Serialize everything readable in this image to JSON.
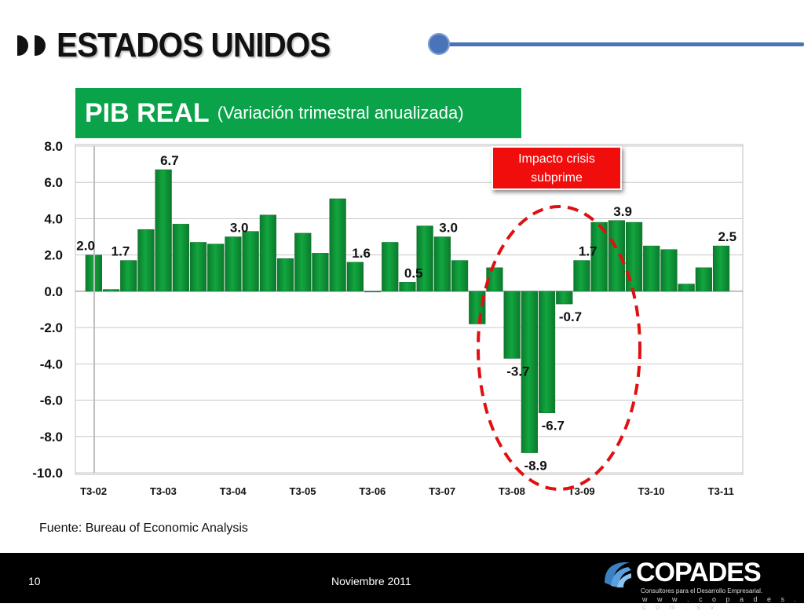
{
  "slide": {
    "title": "ESTADOS UNIDOS",
    "chart_heading": "PIB REAL",
    "chart_subheading": "(Variación trimestral anualizada)",
    "source": "Fuente: Bureau of Economic Analysis",
    "page_number": "10",
    "date": "Noviembre 2011",
    "callout_line1": "Impacto crisis",
    "callout_line2": "subprime"
  },
  "logo": {
    "name": "COPADES",
    "tagline": "Consultores para el Desarrollo Empresarial.",
    "url": "w w w . c o p a d e s . c o m . s v"
  },
  "colors": {
    "bar": "#12a63f",
    "heading_bg": "#0aa34a",
    "accent_line": "#4a74b8",
    "callout_bg": "#f20d0d",
    "ellipse": "#e01010"
  },
  "chart_data": {
    "type": "bar",
    "ylim": [
      -10,
      8
    ],
    "yticks": [
      "8.0",
      "6.0",
      "4.0",
      "2.0",
      "0.0",
      "-2.0",
      "-4.0",
      "-6.0",
      "-8.0",
      "-10.0"
    ],
    "ytick_values": [
      8,
      6,
      4,
      2,
      0,
      -2,
      -4,
      -6,
      -8,
      -10
    ],
    "xtick_labels": [
      "T3-02",
      "T3-03",
      "T3-04",
      "T3-05",
      "T3-06",
      "T3-07",
      "T3-08",
      "T3-09",
      "T3-10",
      "T3-11"
    ],
    "xtick_index": [
      0,
      4,
      8,
      12,
      16,
      20,
      24,
      28,
      32,
      36
    ],
    "values": [
      2.0,
      0.1,
      1.7,
      3.4,
      6.7,
      3.7,
      2.7,
      2.6,
      3.0,
      3.3,
      4.2,
      1.8,
      3.2,
      2.1,
      5.1,
      1.6,
      0.0,
      2.7,
      0.5,
      3.6,
      3.0,
      1.7,
      -1.8,
      1.3,
      -3.7,
      -8.9,
      -6.7,
      -0.7,
      1.7,
      3.8,
      3.9,
      3.8,
      2.5,
      2.3,
      0.4,
      1.3,
      2.5
    ],
    "data_labels": [
      {
        "index": 0,
        "text": "2.0"
      },
      {
        "index": 2,
        "text": "1.7"
      },
      {
        "index": 4,
        "text": "6.7"
      },
      {
        "index": 8,
        "text": "3.0"
      },
      {
        "index": 15,
        "text": "1.6"
      },
      {
        "index": 18,
        "text": "0.5"
      },
      {
        "index": 20,
        "text": "3.0"
      },
      {
        "index": 24,
        "text": "-3.7"
      },
      {
        "index": 25,
        "text": "-8.9"
      },
      {
        "index": 26,
        "text": "-6.7"
      },
      {
        "index": 27,
        "text": "-0.7"
      },
      {
        "index": 28,
        "text": "1.7"
      },
      {
        "index": 30,
        "text": "3.9"
      },
      {
        "index": 36,
        "text": "2.5"
      }
    ],
    "grid": true
  }
}
